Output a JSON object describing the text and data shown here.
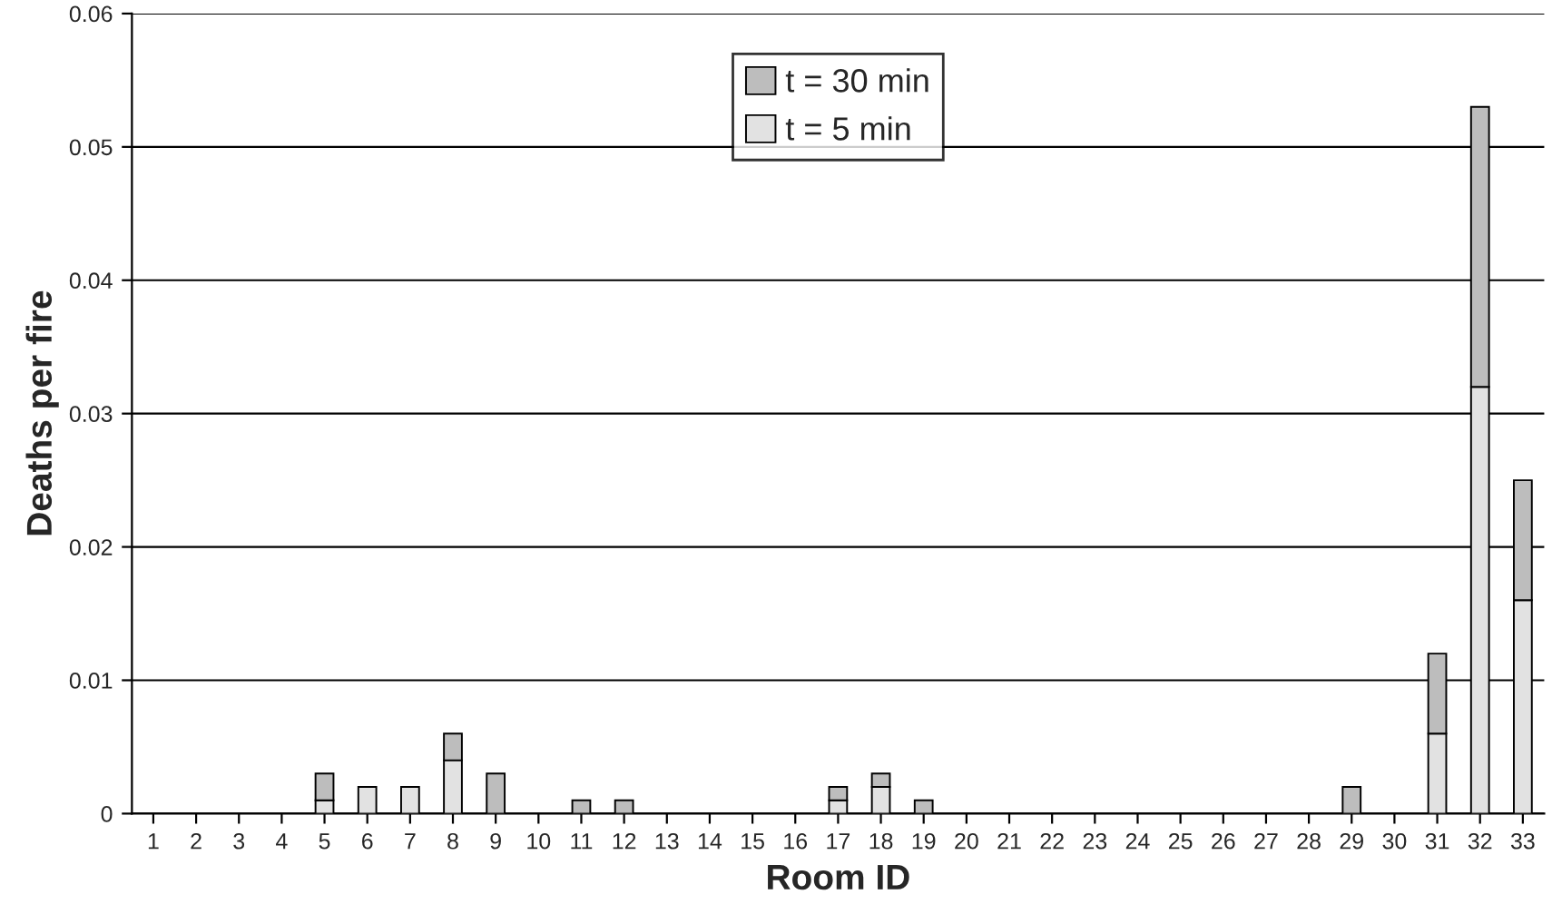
{
  "chart_data": {
    "type": "bar",
    "stacked": true,
    "xlabel": "Room ID",
    "ylabel": "Deaths per fire",
    "categories": [
      "1",
      "2",
      "3",
      "4",
      "5",
      "6",
      "7",
      "8",
      "9",
      "10",
      "11",
      "12",
      "13",
      "14",
      "15",
      "16",
      "17",
      "18",
      "19",
      "20",
      "21",
      "22",
      "23",
      "24",
      "25",
      "26",
      "27",
      "28",
      "29",
      "30",
      "31",
      "32",
      "33"
    ],
    "series": [
      {
        "name": "t = 5 min",
        "color": "#e2e2e2",
        "values": [
          null,
          null,
          null,
          null,
          0.001,
          0.002,
          0.002,
          0.004,
          null,
          null,
          null,
          null,
          null,
          null,
          null,
          null,
          0.001,
          0.002,
          null,
          null,
          null,
          null,
          null,
          null,
          null,
          null,
          null,
          null,
          null,
          null,
          0.006,
          0.032,
          0.016
        ]
      },
      {
        "name": "t = 30 min",
        "color": "#bdbdbd",
        "values": [
          null,
          null,
          null,
          null,
          0.002,
          null,
          null,
          0.002,
          0.003,
          null,
          0.001,
          0.001,
          null,
          null,
          null,
          null,
          0.001,
          0.001,
          0.001,
          null,
          null,
          null,
          null,
          null,
          null,
          null,
          null,
          null,
          0.002,
          null,
          0.006,
          0.021,
          0.009
        ]
      }
    ],
    "ylim": [
      0,
      0.06
    ],
    "yticks": [
      0,
      0.01,
      0.02,
      0.03,
      0.04,
      0.05,
      0.06
    ],
    "grid": "y",
    "legend": "top"
  }
}
